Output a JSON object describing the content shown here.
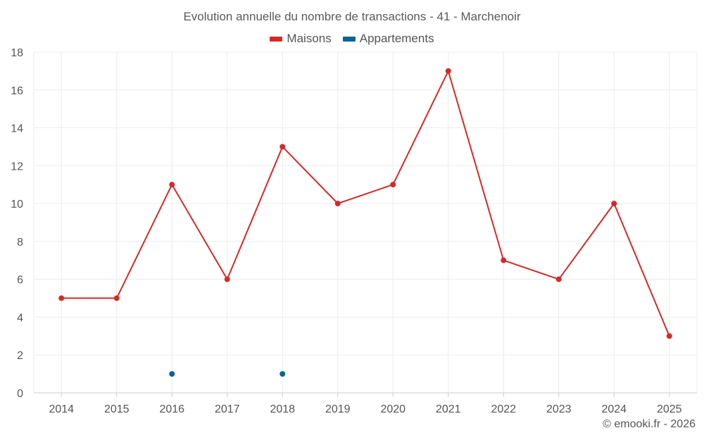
{
  "chart_data": {
    "type": "line",
    "title": "Evolution annuelle du nombre de transactions - 41 - Marchenoir",
    "categories": [
      "2014",
      "2015",
      "2016",
      "2017",
      "2018",
      "2019",
      "2020",
      "2021",
      "2022",
      "2023",
      "2024",
      "2025"
    ],
    "series": [
      {
        "name": "Maisons",
        "color": "#d22b2b",
        "values": [
          5,
          5,
          11,
          6,
          13,
          10,
          11,
          17,
          7,
          6,
          10,
          3
        ]
      },
      {
        "name": "Appartements",
        "color": "#0b6399",
        "values": [
          null,
          null,
          1,
          null,
          1,
          null,
          null,
          null,
          null,
          null,
          null,
          null
        ]
      }
    ],
    "ylim": [
      0,
      18
    ],
    "yticks": [
      "0",
      "2",
      "4",
      "6",
      "8",
      "10",
      "12",
      "14",
      "16",
      "18"
    ],
    "grid": true,
    "legend_position": "top-center"
  },
  "credit": "© emooki.fr - 2026"
}
